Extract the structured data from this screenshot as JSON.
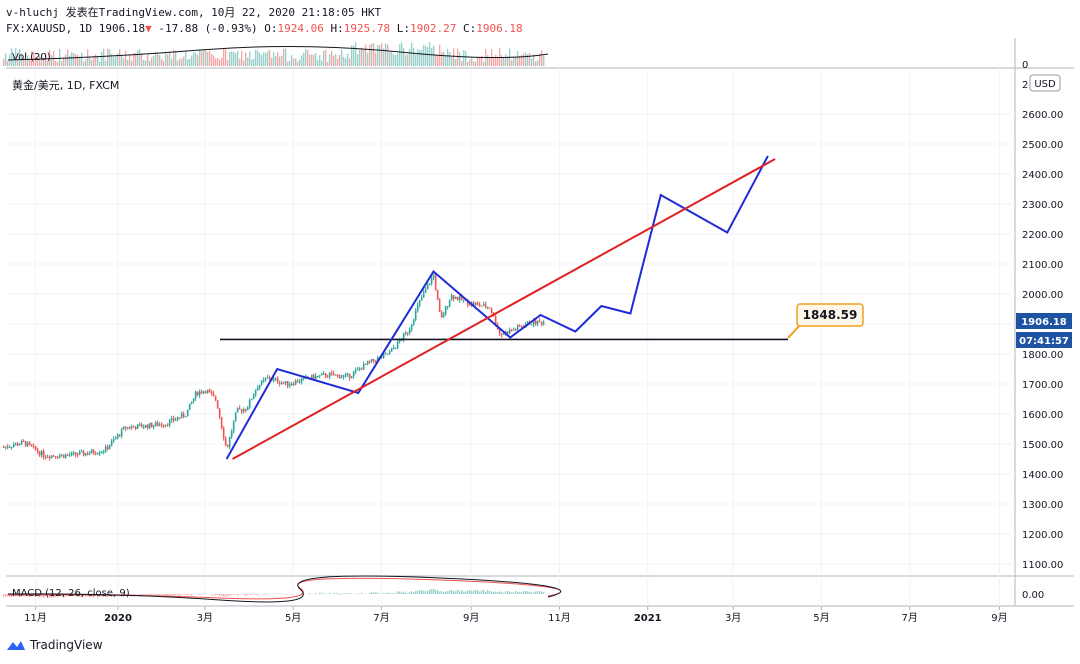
{
  "header": {
    "line1": "v-hluchj 发表在TradingView.com, 10月 22, 2020 21:18:05 HKT",
    "symbol": "FX:XAUUSD, 1D",
    "last": "1906.18",
    "change_arrow": "▼",
    "change": "-17.88 (-0.93%)",
    "open_label": "O:",
    "open": "1924.06",
    "high_label": "H:",
    "high": "1925.78",
    "low_label": "L:",
    "low": "1902.27",
    "close_label": "C:",
    "close": "1906.18"
  },
  "footer": {
    "brand": "TradingView"
  },
  "chart_data": {
    "type": "candlestick",
    "title": "黄金/美元, 1D, FXCM",
    "currency": "USD",
    "y_ticks": [
      "1100.00",
      "1200.00",
      "1300.00",
      "1400.00",
      "1500.00",
      "1600.00",
      "1700.00",
      "1800.00",
      "1900.00",
      "2000.00",
      "2100.00",
      "2200.00",
      "2300.00",
      "2400.00",
      "2500.00",
      "2600.00"
    ],
    "y_axis_top_label": "2",
    "ylim": [
      1060,
      2700
    ],
    "x_ticks": [
      "11月",
      "2020",
      "3月",
      "5月",
      "7月",
      "9月",
      "11月",
      "2021",
      "3月",
      "5月",
      "7月",
      "9月"
    ],
    "price_tag": "1906.18",
    "countdown_tag": "07:41:57",
    "price_line_label": "1848.59",
    "price_line_value": 1848.59,
    "candles": [
      [
        "2019-10-14",
        1490
      ],
      [
        "2019-10-28",
        1505
      ],
      [
        "2019-11-11",
        1462
      ],
      [
        "2019-11-25",
        1462
      ],
      [
        "2019-12-09",
        1468
      ],
      [
        "2019-12-23",
        1480
      ],
      [
        "2020-01-06",
        1555
      ],
      [
        "2020-01-20",
        1560
      ],
      [
        "2020-02-03",
        1568
      ],
      [
        "2020-02-17",
        1600
      ],
      [
        "2020-02-24",
        1670
      ],
      [
        "2020-03-02",
        1680
      ],
      [
        "2020-03-09",
        1645
      ],
      [
        "2020-03-16",
        1480
      ],
      [
        "2020-03-23",
        1610
      ],
      [
        "2020-03-30",
        1620
      ],
      [
        "2020-04-06",
        1690
      ],
      [
        "2020-04-13",
        1720
      ],
      [
        "2020-04-27",
        1700
      ],
      [
        "2020-05-11",
        1720
      ],
      [
        "2020-05-25",
        1730
      ],
      [
        "2020-06-08",
        1725
      ],
      [
        "2020-06-22",
        1770
      ],
      [
        "2020-07-06",
        1800
      ],
      [
        "2020-07-20",
        1880
      ],
      [
        "2020-07-27",
        1970
      ],
      [
        "2020-08-06",
        2065
      ],
      [
        "2020-08-11",
        1910
      ],
      [
        "2020-08-18",
        1995
      ],
      [
        "2020-08-31",
        1970
      ],
      [
        "2020-09-14",
        1955
      ],
      [
        "2020-09-21",
        1865
      ],
      [
        "2020-10-05",
        1890
      ],
      [
        "2020-10-12",
        1905
      ],
      [
        "2020-10-22",
        1906
      ]
    ],
    "series": [
      {
        "points": [
          [
            "2020-03-16",
            1450
          ],
          [
            "2020-04-20",
            1750
          ],
          [
            "2020-06-15",
            1670
          ],
          [
            "2020-08-06",
            2075
          ],
          [
            "2020-09-28",
            1855
          ],
          [
            "2020-10-19",
            1930
          ],
          [
            "2020-11-12",
            1875
          ],
          [
            "2020-11-30",
            1960
          ],
          [
            "2020-12-20",
            1935
          ],
          [
            "2021-01-10",
            2330
          ],
          [
            "2021-02-25",
            2205
          ],
          [
            "2021-03-25",
            2460
          ]
        ]
      },
      {
        "points": [
          [
            "2020-03-16",
            1450
          ],
          [
            "2021-03-30",
            2450
          ]
        ]
      }
    ],
    "colors": {
      "up": "#26a69a",
      "down": "#ef5350",
      "pattern_line": "#1f2bd8",
      "trend_line": "#e02020",
      "price_tag": "#1e53a3",
      "label_border": "#f0a020"
    },
    "volume_label": "Vol (20)",
    "volume_axis_label": "0",
    "macd_label": "MACD (12, 26, close, 9)",
    "macd_axis_label": "0.00"
  }
}
